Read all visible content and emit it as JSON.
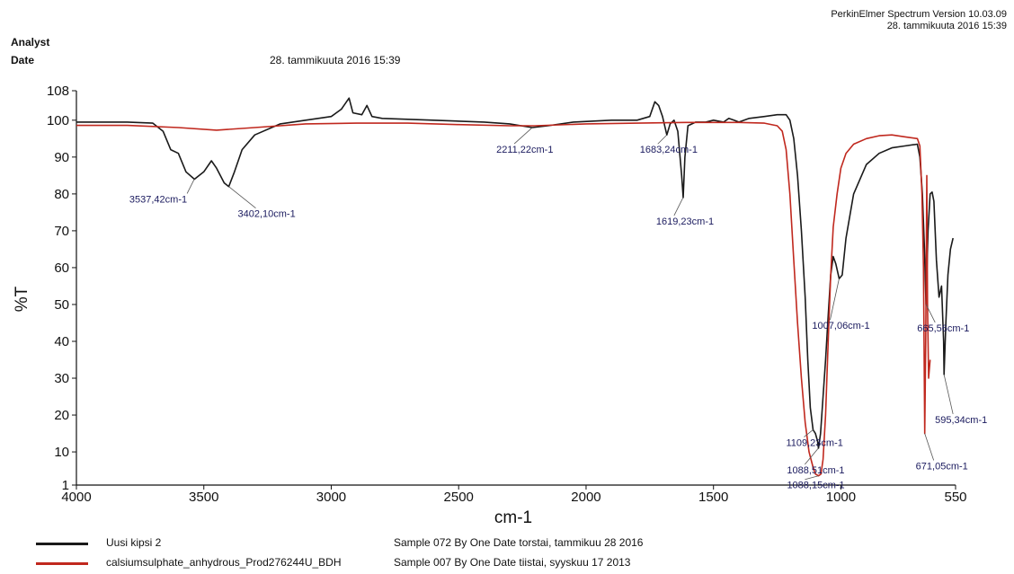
{
  "header": {
    "software": "PerkinElmer Spectrum Version 10.03.09",
    "software_date": "28. tammikuuta 2016 15:39",
    "analyst_label": "Analyst",
    "date_label": "Date",
    "date_value": "28. tammikuuta 2016 15:39"
  },
  "chart_data": {
    "type": "line",
    "xlabel": "cm-1",
    "ylabel": "%T",
    "xlim": [
      4000,
      550
    ],
    "ylim": [
      1,
      108
    ],
    "x_ticks": [
      4000,
      3500,
      3000,
      2500,
      2000,
      1500,
      1000,
      550
    ],
    "y_ticks": [
      1,
      10,
      20,
      30,
      40,
      50,
      60,
      70,
      80,
      90,
      100,
      108
    ],
    "series": [
      {
        "name": "Uusi kipsi 2",
        "description": "Sample 072 By One Date torstai, tammikuu 28 2016",
        "color": "#1a1a1a",
        "points": [
          [
            4000,
            99.5
          ],
          [
            3800,
            99.5
          ],
          [
            3700,
            99.2
          ],
          [
            3660,
            97
          ],
          [
            3630,
            92
          ],
          [
            3600,
            91
          ],
          [
            3570,
            86
          ],
          [
            3537,
            84
          ],
          [
            3500,
            86
          ],
          [
            3470,
            89
          ],
          [
            3450,
            87
          ],
          [
            3420,
            83
          ],
          [
            3402,
            82
          ],
          [
            3380,
            86
          ],
          [
            3350,
            92
          ],
          [
            3300,
            96
          ],
          [
            3200,
            99
          ],
          [
            3100,
            100
          ],
          [
            3000,
            101
          ],
          [
            2960,
            103
          ],
          [
            2930,
            106
          ],
          [
            2915,
            102
          ],
          [
            2880,
            101.5
          ],
          [
            2860,
            104
          ],
          [
            2840,
            101
          ],
          [
            2800,
            100.5
          ],
          [
            2600,
            100
          ],
          [
            2400,
            99.5
          ],
          [
            2300,
            99
          ],
          [
            2211,
            98
          ],
          [
            2150,
            98.5
          ],
          [
            2050,
            99.5
          ],
          [
            1900,
            100
          ],
          [
            1800,
            100
          ],
          [
            1750,
            101
          ],
          [
            1730,
            105
          ],
          [
            1715,
            104
          ],
          [
            1700,
            101
          ],
          [
            1683,
            96
          ],
          [
            1670,
            99
          ],
          [
            1655,
            100
          ],
          [
            1640,
            97
          ],
          [
            1625,
            85
          ],
          [
            1619,
            79
          ],
          [
            1612,
            90
          ],
          [
            1600,
            98.5
          ],
          [
            1570,
            99.5
          ],
          [
            1530,
            99.5
          ],
          [
            1500,
            100
          ],
          [
            1460,
            99.5
          ],
          [
            1440,
            100.5
          ],
          [
            1420,
            100
          ],
          [
            1400,
            99.5
          ],
          [
            1360,
            100.5
          ],
          [
            1300,
            101
          ],
          [
            1250,
            101.5
          ],
          [
            1215,
            101.5
          ],
          [
            1200,
            100
          ],
          [
            1185,
            95
          ],
          [
            1170,
            85
          ],
          [
            1155,
            70
          ],
          [
            1140,
            52
          ],
          [
            1130,
            35
          ],
          [
            1120,
            22
          ],
          [
            1109,
            16
          ],
          [
            1100,
            15
          ],
          [
            1092,
            13
          ],
          [
            1088,
            11
          ],
          [
            1080,
            15
          ],
          [
            1070,
            25
          ],
          [
            1060,
            35
          ],
          [
            1050,
            47
          ],
          [
            1040,
            58
          ],
          [
            1030,
            63
          ],
          [
            1020,
            61
          ],
          [
            1007,
            57
          ],
          [
            995,
            58
          ],
          [
            980,
            68
          ],
          [
            950,
            80
          ],
          [
            900,
            88
          ],
          [
            850,
            91
          ],
          [
            800,
            92.5
          ],
          [
            750,
            93
          ],
          [
            700,
            93.5
          ],
          [
            690,
            90
          ],
          [
            680,
            80
          ],
          [
            672,
            65
          ],
          [
            666,
            50
          ],
          [
            658,
            70
          ],
          [
            650,
            80
          ],
          [
            642,
            80.5
          ],
          [
            635,
            78
          ],
          [
            625,
            62
          ],
          [
            615,
            52
          ],
          [
            605,
            55
          ],
          [
            597,
            40
          ],
          [
            595,
            31
          ],
          [
            588,
            45
          ],
          [
            580,
            58
          ],
          [
            570,
            65
          ],
          [
            560,
            68
          ]
        ]
      },
      {
        "name": "calsiumsulphate_anhydrous_Prod276244U_BDH",
        "description": "Sample 007 By One Date tiistai, syyskuu 17 2013",
        "color": "#c0281e",
        "points": [
          [
            4000,
            98.6
          ],
          [
            3800,
            98.6
          ],
          [
            3600,
            98
          ],
          [
            3450,
            97.3
          ],
          [
            3300,
            98
          ],
          [
            3100,
            99
          ],
          [
            2900,
            99.2
          ],
          [
            2700,
            99.2
          ],
          [
            2500,
            98.8
          ],
          [
            2300,
            98.5
          ],
          [
            2200,
            98.5
          ],
          [
            2000,
            99
          ],
          [
            1800,
            99.2
          ],
          [
            1600,
            99.4
          ],
          [
            1400,
            99.4
          ],
          [
            1300,
            99.2
          ],
          [
            1250,
            98.5
          ],
          [
            1230,
            97
          ],
          [
            1215,
            92
          ],
          [
            1200,
            80
          ],
          [
            1185,
            62
          ],
          [
            1170,
            45
          ],
          [
            1155,
            30
          ],
          [
            1140,
            18
          ],
          [
            1125,
            10
          ],
          [
            1110,
            6
          ],
          [
            1100,
            4
          ],
          [
            1088,
            3.5
          ],
          [
            1078,
            4
          ],
          [
            1070,
            8
          ],
          [
            1060,
            20
          ],
          [
            1050,
            40
          ],
          [
            1040,
            58
          ],
          [
            1030,
            71
          ],
          [
            1015,
            80
          ],
          [
            1000,
            87
          ],
          [
            980,
            91
          ],
          [
            950,
            93.5
          ],
          [
            900,
            95
          ],
          [
            850,
            95.8
          ],
          [
            800,
            96
          ],
          [
            750,
            95.5
          ],
          [
            700,
            95
          ],
          [
            690,
            93
          ],
          [
            682,
            80
          ],
          [
            676,
            60
          ],
          [
            671,
            15
          ],
          [
            667,
            40
          ],
          [
            663,
            85
          ],
          [
            660,
            50
          ],
          [
            656,
            30
          ],
          [
            650,
            35
          ]
        ]
      }
    ],
    "annotations": [
      {
        "label": "3537,42cm-1",
        "x": 3537.42,
        "y": 84
      },
      {
        "label": "3402,10cm-1",
        "x": 3402.1,
        "y": 82
      },
      {
        "label": "2211,22cm-1",
        "x": 2211.22,
        "y": 98
      },
      {
        "label": "1683,24cm-1",
        "x": 1683.24,
        "y": 96
      },
      {
        "label": "1619,23cm-1",
        "x": 1619.23,
        "y": 79
      },
      {
        "label": "1007,06cm-1",
        "x": 1007.06,
        "y": 57
      },
      {
        "label": "665,56cm-1",
        "x": 665.56,
        "y": 50
      },
      {
        "label": "595,34cm-1",
        "x": 595.34,
        "y": 31
      },
      {
        "label": "1109,23cm-1",
        "x": 1109.23,
        "y": 16
      },
      {
        "label": "1088,51cm-1",
        "x": 1088.51,
        "y": 11
      },
      {
        "label": "1088,15cm-1",
        "x": 1088.15,
        "y": 3.5
      },
      {
        "label": "671,05cm-1",
        "x": 671.05,
        "y": 15
      }
    ]
  }
}
